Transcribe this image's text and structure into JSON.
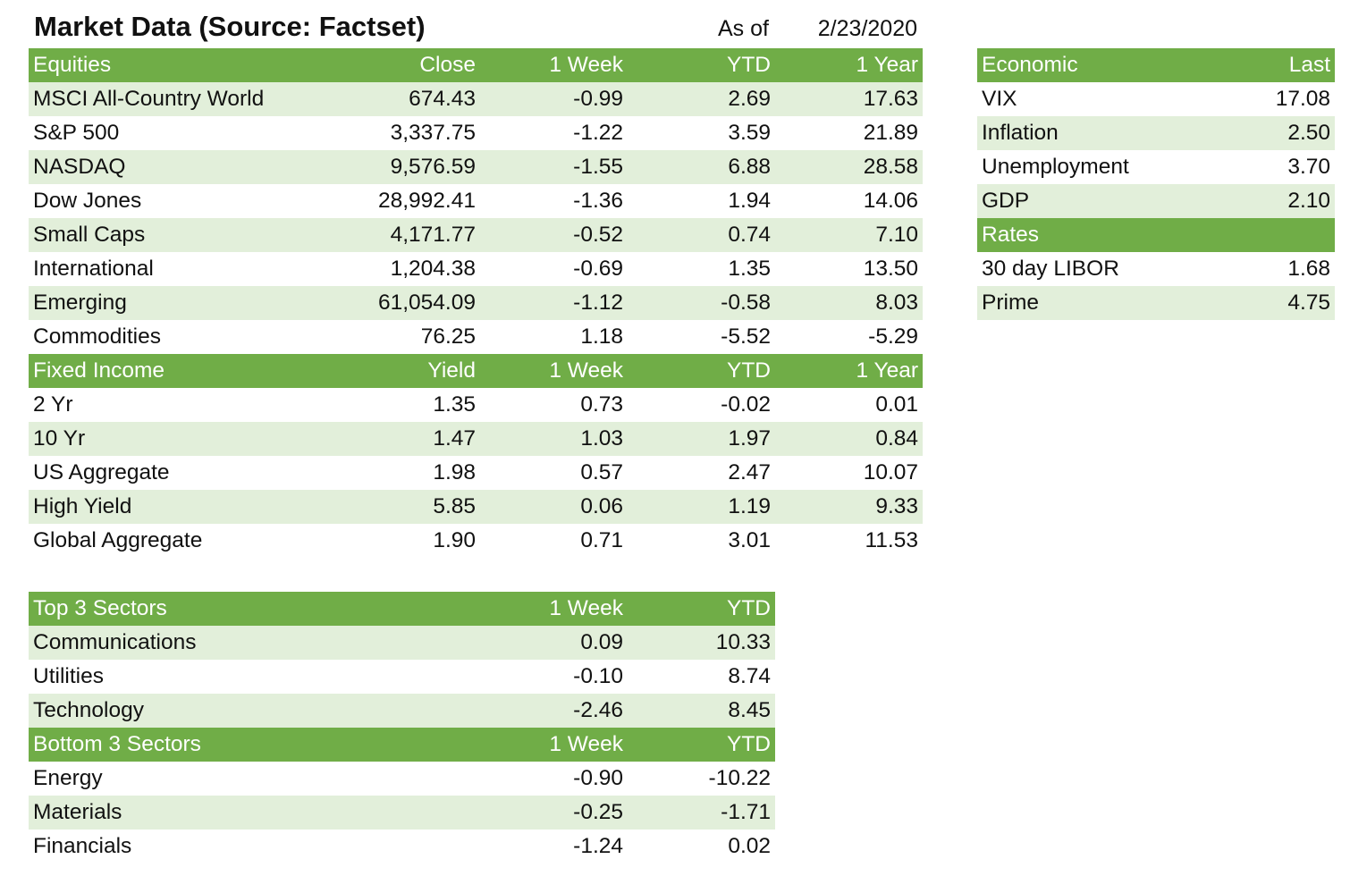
{
  "title": "Market Data (Source: Factset)",
  "as_of_label": "As of",
  "as_of_date": "2/23/2020",
  "colors": {
    "header_green": "#70ad47",
    "band_green": "#e2efda",
    "header_text": "#ffffff"
  },
  "equities": {
    "headers": [
      "Equities",
      "Close",
      "1 Week",
      "YTD",
      "1 Year"
    ],
    "rows": [
      [
        "MSCI All-Country World",
        "674.43",
        "-0.99",
        "2.69",
        "17.63"
      ],
      [
        "S&P 500",
        "3,337.75",
        "-1.22",
        "3.59",
        "21.89"
      ],
      [
        "NASDAQ",
        "9,576.59",
        "-1.55",
        "6.88",
        "28.58"
      ],
      [
        "Dow Jones",
        "28,992.41",
        "-1.36",
        "1.94",
        "14.06"
      ],
      [
        "Small Caps",
        "4,171.77",
        "-0.52",
        "0.74",
        "7.10"
      ],
      [
        "International",
        "1,204.38",
        "-0.69",
        "1.35",
        "13.50"
      ],
      [
        "Emerging",
        "61,054.09",
        "-1.12",
        "-0.58",
        "8.03"
      ],
      [
        "Commodities",
        "76.25",
        "1.18",
        "-5.52",
        "-5.29"
      ]
    ]
  },
  "fixed_income": {
    "headers": [
      "Fixed Income",
      "Yield",
      "1 Week",
      "YTD",
      "1 Year"
    ],
    "rows": [
      [
        "2 Yr",
        "1.35",
        "0.73",
        "-0.02",
        "0.01"
      ],
      [
        "10 Yr",
        "1.47",
        "1.03",
        "1.97",
        "0.84"
      ],
      [
        "US Aggregate",
        "1.98",
        "0.57",
        "2.47",
        "10.07"
      ],
      [
        "High Yield",
        "5.85",
        "0.06",
        "1.19",
        "9.33"
      ],
      [
        "Global Aggregate",
        "1.90",
        "0.71",
        "3.01",
        "11.53"
      ]
    ]
  },
  "economic": {
    "headers": [
      "Economic",
      "Last"
    ],
    "rows": [
      [
        "VIX",
        "17.08"
      ],
      [
        "Inflation",
        "2.50"
      ],
      [
        "Unemployment",
        "3.70"
      ],
      [
        "GDP",
        "2.10"
      ]
    ]
  },
  "rates": {
    "header": "Rates",
    "rows": [
      [
        "30 day LIBOR",
        "1.68"
      ],
      [
        "Prime",
        "4.75"
      ]
    ]
  },
  "top_sectors": {
    "headers": [
      "Top 3 Sectors",
      "1 Week",
      "YTD"
    ],
    "rows": [
      [
        "Communications",
        "0.09",
        "10.33"
      ],
      [
        "Utilities",
        "-0.10",
        "8.74"
      ],
      [
        "Technology",
        "-2.46",
        "8.45"
      ]
    ]
  },
  "bottom_sectors": {
    "headers": [
      "Bottom 3 Sectors",
      "1 Week",
      "YTD"
    ],
    "rows": [
      [
        "Energy",
        "-0.90",
        "-10.22"
      ],
      [
        "Materials",
        "-0.25",
        "-1.71"
      ],
      [
        "Financials",
        "-1.24",
        "0.02"
      ]
    ]
  }
}
